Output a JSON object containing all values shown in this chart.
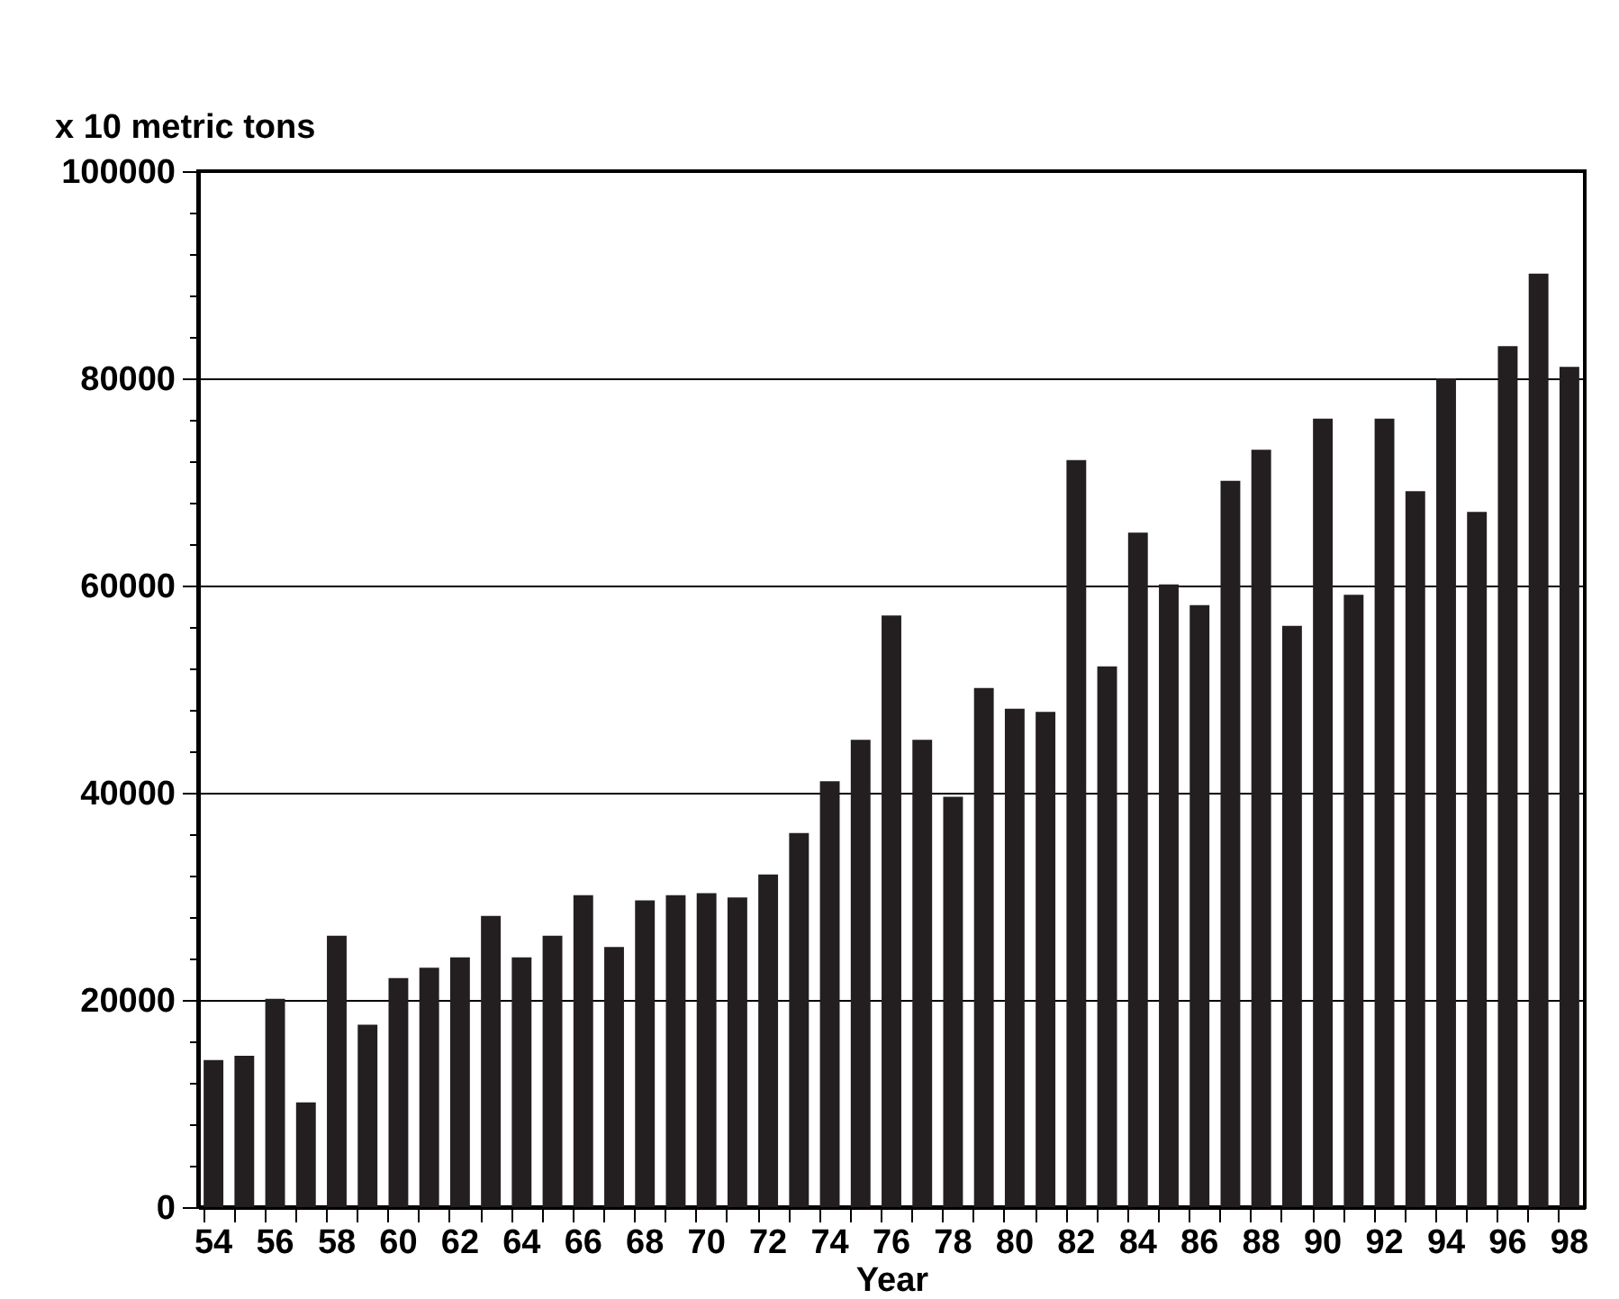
{
  "chart_data": {
    "type": "bar",
    "ylabel": "x 10 metric tons",
    "xlabel": "Year",
    "categories": [
      "54",
      null,
      "56",
      null,
      "58",
      null,
      "60",
      null,
      "62",
      null,
      "64",
      null,
      "66",
      null,
      "68",
      null,
      "70",
      null,
      "72",
      null,
      "74",
      null,
      "76",
      null,
      "78",
      null,
      "80",
      null,
      "82",
      null,
      "84",
      null,
      "86",
      null,
      "88",
      null,
      "90",
      null,
      "92",
      null,
      "94",
      null,
      "96",
      null,
      "98"
    ],
    "values": [
      14200,
      14600,
      20100,
      10100,
      26200,
      17600,
      22100,
      23100,
      24100,
      28100,
      24100,
      26200,
      30100,
      25100,
      29600,
      30100,
      30300,
      29900,
      32100,
      36100,
      41100,
      45100,
      57100,
      45100,
      39600,
      50100,
      48100,
      47800,
      72100,
      52200,
      65100,
      60100,
      58100,
      70100,
      73100,
      56100,
      76100,
      59100,
      76100,
      69100,
      80000,
      67100,
      83100,
      90100,
      81100
    ],
    "color": "#231f20",
    "ylim": [
      0,
      100000
    ],
    "yticks": [
      0,
      {
        "value": 4000,
        "label": null
      },
      {
        "value": 8000,
        "label": null
      },
      {
        "value": 12000,
        "label": null
      },
      {
        "value": 16000,
        "label": null
      },
      20000,
      {
        "value": 24000,
        "label": null
      },
      {
        "value": 28000,
        "label": null
      },
      {
        "value": 32000,
        "label": null
      },
      {
        "value": 36000,
        "label": null
      },
      40000,
      {
        "value": 44000,
        "label": null
      },
      {
        "value": 48000,
        "label": null
      },
      {
        "value": 52000,
        "label": null
      },
      {
        "value": 56000,
        "label": null
      },
      60000,
      {
        "value": 64000,
        "label": null
      },
      {
        "value": 68000,
        "label": null
      },
      {
        "value": 72000,
        "label": null
      },
      {
        "value": 76000,
        "label": null
      },
      80000,
      {
        "value": 84000,
        "label": null
      },
      {
        "value": 88000,
        "label": null
      },
      {
        "value": 92000,
        "label": null
      },
      {
        "value": 96000,
        "label": null
      },
      100000
    ],
    "grid": "y"
  }
}
